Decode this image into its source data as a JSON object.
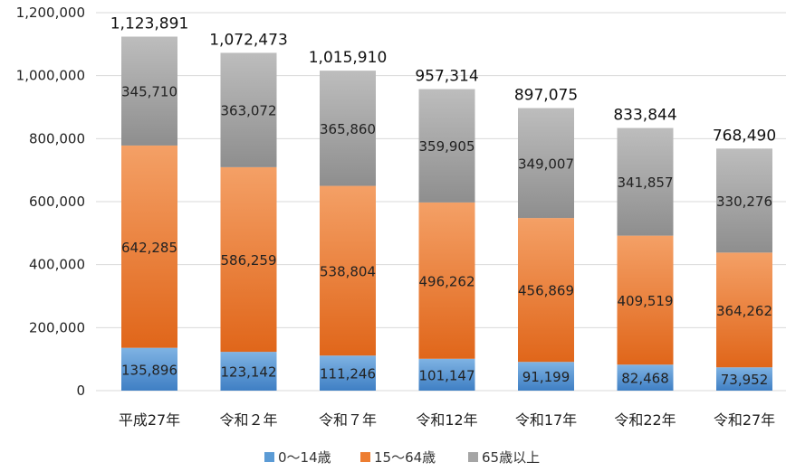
{
  "chart_data": {
    "type": "bar",
    "stacked": true,
    "categories": [
      "平成27年",
      "令和２年",
      "令和７年",
      "令和12年",
      "令和17年",
      "令和22年",
      "令和27年"
    ],
    "series": [
      {
        "name": "0～14歳",
        "color": "#5b9bd5",
        "values": [
          135896,
          123142,
          111246,
          101147,
          91199,
          82468,
          73952
        ]
      },
      {
        "name": "15～64歳",
        "color": "#ed7d31",
        "values": [
          642285,
          586259,
          538804,
          496262,
          456869,
          409519,
          364262
        ]
      },
      {
        "name": "65歳以上",
        "color": "#a5a5a5",
        "values": [
          345710,
          363072,
          365860,
          359905,
          349007,
          341857,
          330276
        ]
      }
    ],
    "totals": [
      1123891,
      1072473,
      1015910,
      957314,
      897075,
      833844,
      768490
    ],
    "ylim": [
      0,
      1200000
    ],
    "yticks": [
      0,
      200000,
      400000,
      600000,
      800000,
      1000000,
      1200000
    ],
    "grid": true,
    "legend_position": "bottom"
  }
}
